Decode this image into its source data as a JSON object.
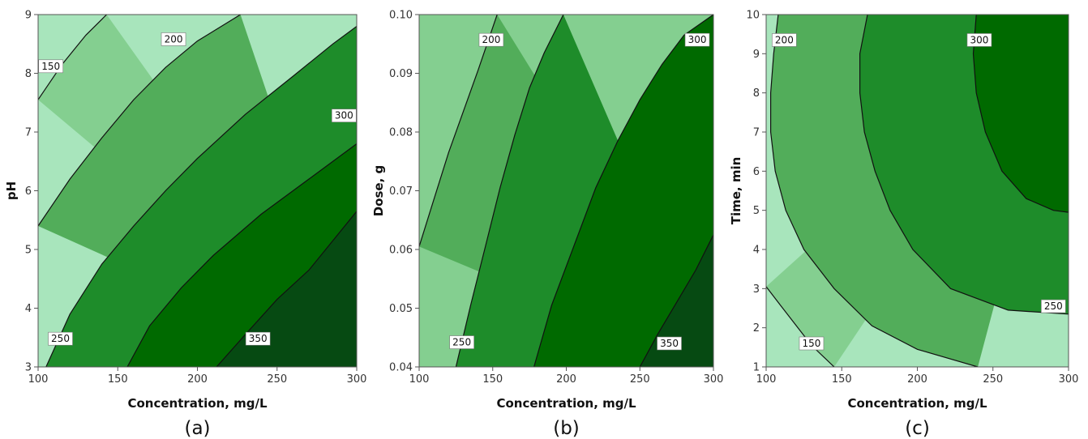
{
  "chart_data": [
    {
      "type": "contour",
      "panel_label": "(a)",
      "xlabel": "Concentration, mg/L",
      "ylabel": "pH",
      "xlim": [
        100,
        300
      ],
      "ylim": [
        3,
        9
      ],
      "xticks": [
        100,
        150,
        200,
        250,
        300
      ],
      "yticks": [
        3,
        4,
        5,
        6,
        7,
        8,
        9
      ],
      "levels": [
        150,
        200,
        250,
        300,
        350
      ],
      "fill_colors": [
        "#a8e5bc",
        "#84cf90",
        "#52ad5a",
        "#1e8c2a",
        "#006a00",
        "#064a12"
      ],
      "contours": [
        {
          "level": 150,
          "points": [
            [
              100,
              7.55
            ],
            [
              115,
              8.15
            ],
            [
              130,
              8.65
            ],
            [
              143,
              9
            ]
          ]
        },
        {
          "level": 200,
          "points": [
            [
              100,
              5.4
            ],
            [
              120,
              6.2
            ],
            [
              140,
              6.9
            ],
            [
              160,
              7.55
            ],
            [
              180,
              8.1
            ],
            [
              200,
              8.55
            ],
            [
              227,
              9
            ]
          ]
        },
        {
          "level": 250,
          "points": [
            [
              105,
              3
            ],
            [
              120,
              3.9
            ],
            [
              140,
              4.75
            ],
            [
              160,
              5.4
            ],
            [
              180,
              6.0
            ],
            [
              200,
              6.55
            ],
            [
              230,
              7.3
            ],
            [
              260,
              7.95
            ],
            [
              285,
              8.5
            ],
            [
              300,
              8.8
            ]
          ]
        },
        {
          "level": 300,
          "points": [
            [
              156,
              3
            ],
            [
              170,
              3.7
            ],
            [
              190,
              4.35
            ],
            [
              210,
              4.9
            ],
            [
              240,
              5.6
            ],
            [
              270,
              6.2
            ],
            [
              300,
              6.8
            ]
          ]
        },
        {
          "level": 350,
          "points": [
            [
              212,
              3
            ],
            [
              230,
              3.55
            ],
            [
              250,
              4.15
            ],
            [
              270,
              4.65
            ],
            [
              300,
              5.65
            ]
          ]
        }
      ],
      "contour_labels": [
        {
          "text": "150",
          "x": 108,
          "y": 8.12
        },
        {
          "text": "200",
          "x": 185,
          "y": 8.58
        },
        {
          "text": "300",
          "x": 292,
          "y": 7.28
        },
        {
          "text": "250",
          "x": 114,
          "y": 3.48
        },
        {
          "text": "350",
          "x": 238,
          "y": 3.48
        }
      ]
    },
    {
      "type": "contour",
      "panel_label": "(b)",
      "xlabel": "Concentration, mg/L",
      "ylabel": "Dose, g",
      "xlim": [
        100,
        300
      ],
      "ylim": [
        0.04,
        0.1
      ],
      "xticks": [
        100,
        150,
        200,
        250,
        300
      ],
      "yticks": [
        0.04,
        0.05,
        0.06,
        0.07,
        0.08,
        0.09,
        0.1
      ],
      "ytick_labels": [
        "0.04",
        "0.05",
        "0.06",
        "0.07",
        "0.08",
        "0.09",
        "0.10"
      ],
      "levels": [
        200,
        250,
        300,
        350
      ],
      "fill_colors": [
        "#84cf90",
        "#52ad5a",
        "#1e8c2a",
        "#006a00",
        "#064a12"
      ],
      "contours": [
        {
          "level": 200,
          "points": [
            [
              100,
              0.0605
            ],
            [
              110,
              0.0685
            ],
            [
              120,
              0.0765
            ],
            [
              130,
              0.0835
            ],
            [
              140,
              0.0905
            ],
            [
              153,
              0.1
            ]
          ]
        },
        {
          "level": 250,
          "points": [
            [
              125,
              0.04
            ],
            [
              135,
              0.0505
            ],
            [
              145,
              0.0605
            ],
            [
              155,
              0.0705
            ],
            [
              165,
              0.0795
            ],
            [
              175,
              0.0875
            ],
            [
              185,
              0.0935
            ],
            [
              198,
              0.1
            ]
          ]
        },
        {
          "level": 300,
          "points": [
            [
              178,
              0.04
            ],
            [
              190,
              0.0505
            ],
            [
              205,
              0.0605
            ],
            [
              220,
              0.0705
            ],
            [
              235,
              0.0785
            ],
            [
              250,
              0.0855
            ],
            [
              265,
              0.0915
            ],
            [
              280,
              0.0965
            ],
            [
              300,
              0.1
            ]
          ]
        },
        {
          "level": 350,
          "points": [
            [
              250,
              0.04
            ],
            [
              262,
              0.0455
            ],
            [
              275,
              0.051
            ],
            [
              288,
              0.0565
            ],
            [
              300,
              0.0625
            ]
          ]
        }
      ],
      "contour_labels": [
        {
          "text": "200",
          "x": 149,
          "y": 0.0957
        },
        {
          "text": "300",
          "x": 289,
          "y": 0.0957
        },
        {
          "text": "250",
          "x": 129,
          "y": 0.0442
        },
        {
          "text": "350",
          "x": 270,
          "y": 0.044
        }
      ]
    },
    {
      "type": "contour",
      "panel_label": "(c)",
      "xlabel": "Concentration, mg/L",
      "ylabel": "Time, min",
      "xlim": [
        100,
        300
      ],
      "ylim": [
        1,
        10
      ],
      "xticks": [
        100,
        150,
        200,
        250,
        300
      ],
      "yticks": [
        1,
        2,
        3,
        4,
        5,
        6,
        7,
        8,
        9,
        10
      ],
      "levels": [
        150,
        200,
        250,
        300
      ],
      "fill_colors": [
        "#a8e5bc",
        "#84cf90",
        "#52ad5a",
        "#1e8c2a",
        "#006a00"
      ],
      "contours": [
        {
          "level": 150,
          "points": [
            [
              100,
              3.05
            ],
            [
              110,
              2.55
            ],
            [
              120,
              2.05
            ],
            [
              130,
              1.55
            ],
            [
              145,
              1
            ]
          ]
        },
        {
          "level": 200,
          "points": [
            [
              108,
              10
            ],
            [
              105,
              9.0
            ],
            [
              103,
              8.0
            ],
            [
              103,
              7.0
            ],
            [
              106,
              6.0
            ],
            [
              113,
              5.0
            ],
            [
              125,
              4.0
            ],
            [
              145,
              3.0
            ],
            [
              170,
              2.05
            ],
            [
              200,
              1.45
            ],
            [
              240,
              1
            ]
          ]
        },
        {
          "level": 250,
          "points": [
            [
              167,
              10
            ],
            [
              162,
              9.0
            ],
            [
              162,
              8.0
            ],
            [
              165,
              7.0
            ],
            [
              172,
              6.0
            ],
            [
              182,
              5.0
            ],
            [
              197,
              4.0
            ],
            [
              222,
              3.0
            ],
            [
              260,
              2.45
            ],
            [
              300,
              2.35
            ]
          ]
        },
        {
          "level": 300,
          "points": [
            [
              239,
              10
            ],
            [
              237,
              9.0
            ],
            [
              239,
              8.0
            ],
            [
              245,
              7.0
            ],
            [
              256,
              6.0
            ],
            [
              272,
              5.3
            ],
            [
              290,
              5.0
            ],
            [
              300,
              4.95
            ]
          ]
        }
      ],
      "contour_labels": [
        {
          "text": "200",
          "x": 112,
          "y": 9.35
        },
        {
          "text": "300",
          "x": 241,
          "y": 9.35
        },
        {
          "text": "250",
          "x": 290,
          "y": 2.55
        },
        {
          "text": "150",
          "x": 130,
          "y": 1.6
        }
      ]
    }
  ]
}
